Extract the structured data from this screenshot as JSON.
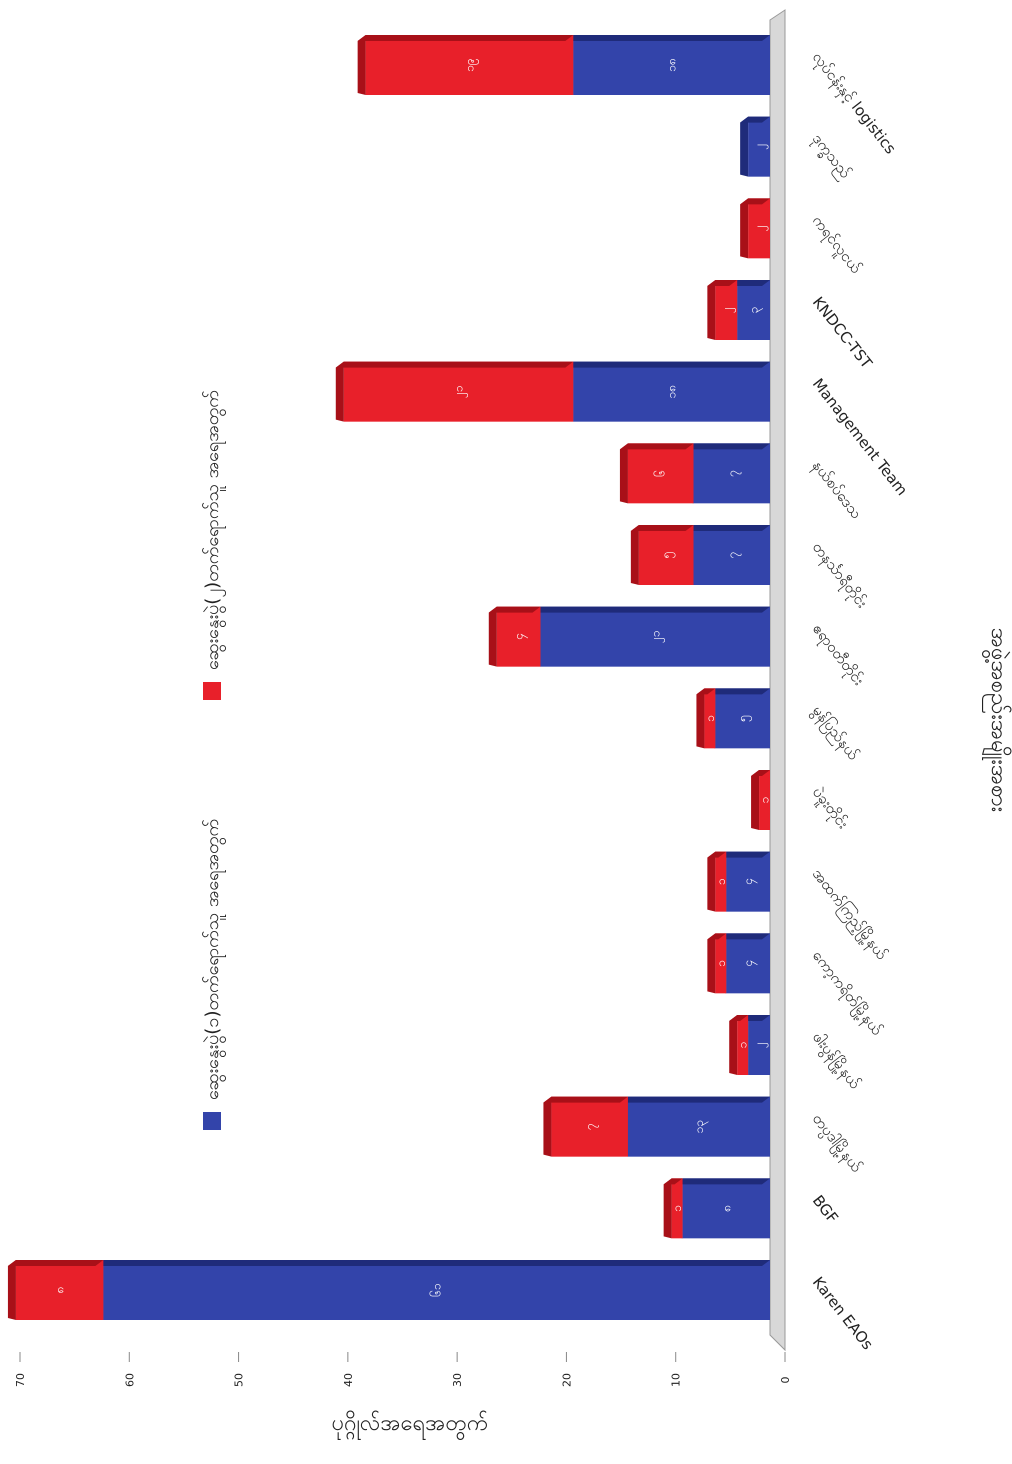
{
  "chart_data": {
    "type": "bar",
    "stacked": true,
    "y_axis_title": "ပုဂ္ဂိုလ်အရေအတွက်",
    "x_axis_title": "အဖွဲ့အစည်းအမျိုးအစား",
    "categories": [
      "Karen EAOs",
      "BGF",
      "တပ္ပဒါမြို့နယ်",
      "ဖါးပွန်မြို့နယ်",
      "ကော့ကရိတ်မြို့နယ်",
      "အထက်ကြည့်မြို့နယ်",
      "ပဲခူးတိုင်း",
      "မွန်ပြည်နယ်",
      "ဧရာဝတီတိုင်း",
      "တနင်္သာရီတိုင်း",
      "နယ်စပ်ဒေသ",
      "Management Team",
      "KNDCC-TST",
      "ကရင်လူငယ်",
      "ဒုက္ခသည်",
      "လုပ်ငန်းနှင့် logistics"
    ],
    "series": [
      {
        "name": "ဆွေးနွေးပွဲ(၁)တက်ရောက်သူ အရေအတွက်",
        "color": "#3344aa",
        "values": [
          61,
          8,
          13,
          2,
          4,
          4,
          0,
          5,
          21,
          7,
          7,
          18,
          3,
          0,
          2,
          18
        ],
        "value_labels": [
          "၆၁",
          "၈",
          "၁၃",
          "၂",
          "၄",
          "၄",
          "၀",
          "၅",
          "၂၁",
          "၇",
          "၇",
          "၁၈",
          "၃",
          "၀",
          "၂",
          "၁၈"
        ]
      },
      {
        "name": "ဆွေးနွေးပွဲ(၂)တက်ရောက်သူ အရေအတွက်",
        "color": "#e8202a",
        "values": [
          8,
          1,
          7,
          1,
          1,
          1,
          1,
          1,
          4,
          5,
          6,
          21,
          2,
          2,
          0,
          19
        ],
        "value_labels": [
          "၈",
          "၁",
          "၇",
          "၁",
          "၁",
          "၁",
          "၁",
          "၁",
          "၄",
          "၅",
          "၆",
          "၂၁",
          "၂",
          "၂",
          "၀",
          "၁၉"
        ]
      }
    ],
    "ylim": [
      0,
      70
    ],
    "yticks": [
      0,
      10,
      20,
      30,
      40,
      50,
      60,
      70
    ]
  }
}
